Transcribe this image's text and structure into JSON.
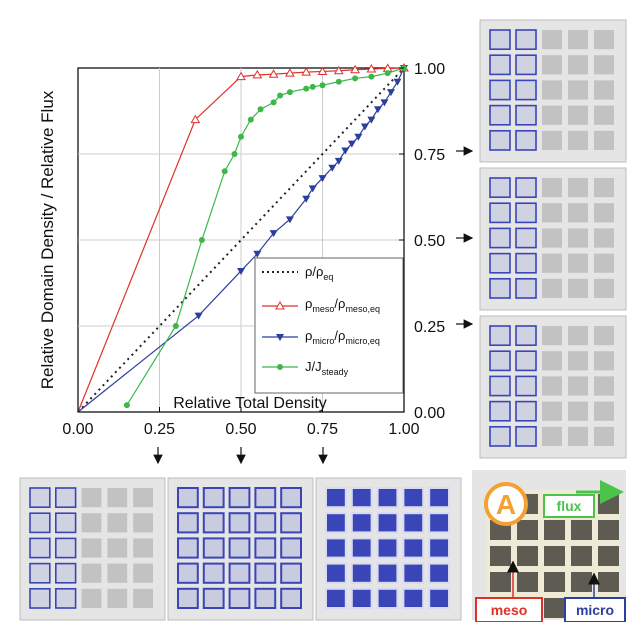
{
  "chart_data": {
    "type": "line",
    "xlabel": "Relative Total Density",
    "ylabel": "Relative Domain Density / Relative Flux",
    "xlim": [
      0,
      1
    ],
    "ylim": [
      0,
      1
    ],
    "x_ticks": [
      "0.00",
      "0.25",
      "0.50",
      "0.75",
      "1.00"
    ],
    "y_ticks": [
      "0.00",
      "0.25",
      "0.50",
      "0.75",
      "1.00"
    ],
    "grid": true,
    "legend_position": "bottom-right",
    "series": [
      {
        "key": "eq",
        "name": "ρ/ρ",
        "sub": "eq",
        "color": "#222222",
        "style": "dotted",
        "marker": "none",
        "points": [
          [
            0,
            0
          ],
          [
            1,
            1
          ]
        ]
      },
      {
        "key": "meso",
        "name": "ρ",
        "sub": "meso",
        "name2": "/ρ",
        "sub2": "meso,eq",
        "color": "#e0302a",
        "style": "solid",
        "marker": "triangle-up-open",
        "points": [
          [
            0,
            0
          ],
          [
            0.36,
            0.85
          ],
          [
            0.5,
            0.975
          ],
          [
            0.55,
            0.98
          ],
          [
            0.6,
            0.982
          ],
          [
            0.65,
            0.985
          ],
          [
            0.7,
            0.988
          ],
          [
            0.75,
            0.99
          ],
          [
            0.8,
            0.992
          ],
          [
            0.85,
            0.995
          ],
          [
            0.9,
            0.997
          ],
          [
            0.95,
            0.999
          ],
          [
            1,
            1
          ]
        ]
      },
      {
        "key": "micro",
        "name": "ρ",
        "sub": "micro",
        "name2": "/ρ",
        "sub2": "micro,eq",
        "color": "#2a3f9e",
        "style": "solid",
        "marker": "triangle-down",
        "points": [
          [
            0,
            0
          ],
          [
            0.37,
            0.28
          ],
          [
            0.5,
            0.41
          ],
          [
            0.55,
            0.46
          ],
          [
            0.6,
            0.52
          ],
          [
            0.65,
            0.56
          ],
          [
            0.7,
            0.62
          ],
          [
            0.72,
            0.65
          ],
          [
            0.75,
            0.68
          ],
          [
            0.78,
            0.71
          ],
          [
            0.8,
            0.73
          ],
          [
            0.82,
            0.76
          ],
          [
            0.84,
            0.78
          ],
          [
            0.86,
            0.8
          ],
          [
            0.88,
            0.83
          ],
          [
            0.9,
            0.85
          ],
          [
            0.92,
            0.88
          ],
          [
            0.94,
            0.9
          ],
          [
            0.96,
            0.93
          ],
          [
            0.98,
            0.96
          ],
          [
            1,
            1
          ]
        ]
      },
      {
        "key": "flux",
        "name": "J/J",
        "sub": "steady",
        "color": "#3cb84a",
        "style": "solid",
        "marker": "circle",
        "points": [
          [
            0.15,
            0.02
          ],
          [
            0.3,
            0.25
          ],
          [
            0.38,
            0.5
          ],
          [
            0.45,
            0.7
          ],
          [
            0.48,
            0.75
          ],
          [
            0.5,
            0.8
          ],
          [
            0.53,
            0.85
          ],
          [
            0.56,
            0.88
          ],
          [
            0.6,
            0.9
          ],
          [
            0.62,
            0.92
          ],
          [
            0.65,
            0.93
          ],
          [
            0.7,
            0.94
          ],
          [
            0.72,
            0.945
          ],
          [
            0.75,
            0.95
          ],
          [
            0.8,
            0.96
          ],
          [
            0.85,
            0.97
          ],
          [
            0.9,
            0.975
          ],
          [
            0.95,
            0.985
          ],
          [
            1,
            1
          ]
        ]
      }
    ]
  },
  "inset": {
    "badge": "A",
    "flux_label": "flux",
    "meso_label": "meso",
    "micro_label": "micro"
  },
  "snapshots": {
    "right_states": [
      "light",
      "light",
      "light"
    ],
    "bottom_states": [
      "light",
      "medium",
      "dense"
    ]
  },
  "colors": {
    "panel_bg": "#e5e5e5",
    "tile_gray": "#c2c2c2",
    "tile_blue": "#3a45b8",
    "inset_bg": "#efead6",
    "inset_dark": "#5e5c52",
    "arrow_green": "#4cc44c",
    "badge_orange": "#f2a234"
  }
}
